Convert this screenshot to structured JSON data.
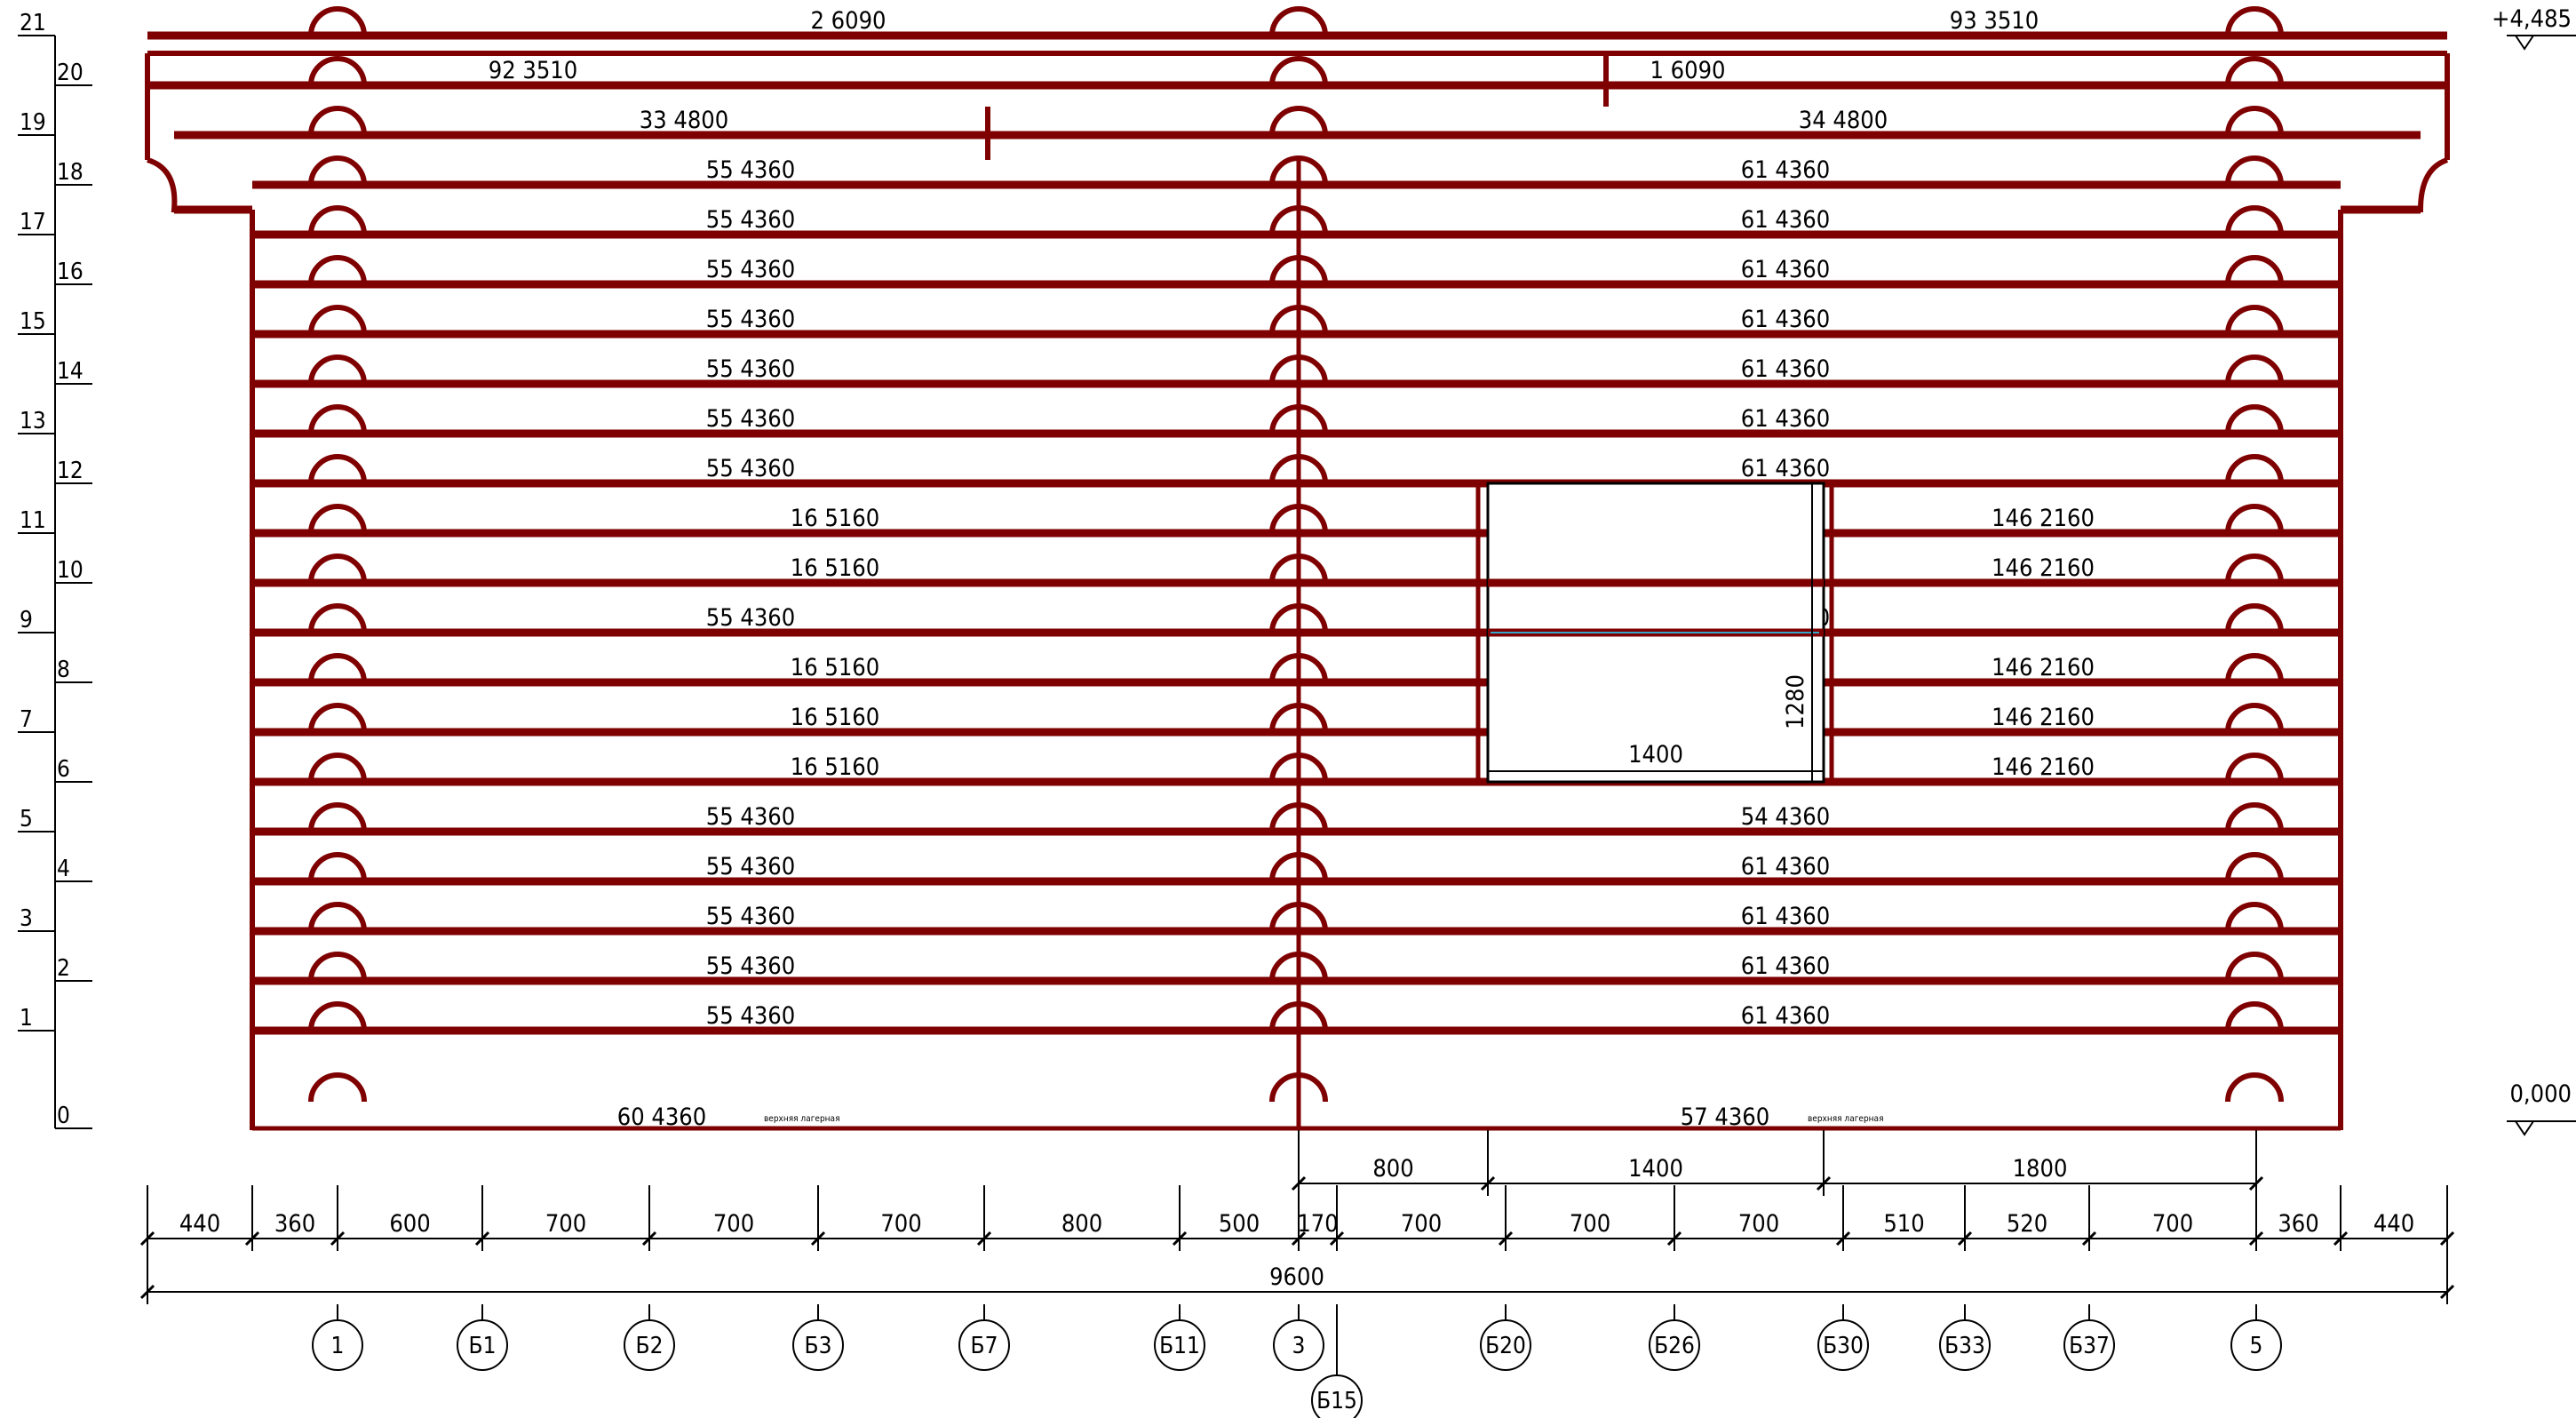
{
  "elevations": {
    "top": "+4,485",
    "bottom": "0,000"
  },
  "row_numbers": [
    "0",
    "1",
    "2",
    "3",
    "4",
    "5",
    "6",
    "7",
    "8",
    "9",
    "10",
    "11",
    "12",
    "13",
    "14",
    "15",
    "16",
    "17",
    "18",
    "19",
    "20",
    "21"
  ],
  "rows": {
    "21": {
      "left": "2  6090",
      "right": "93  3510"
    },
    "20": {
      "left": "92  3510",
      "right": "1  6090"
    },
    "19": {
      "left": "33  4800",
      "right": "34  4800"
    },
    "18": {
      "left": "55  4360",
      "right": "61  4360"
    },
    "17": {
      "left": "55  4360",
      "right": "61  4360"
    },
    "16": {
      "left": "55  4360",
      "right": "61  4360"
    },
    "15": {
      "left": "55  4360",
      "right": "61  4360"
    },
    "14": {
      "left": "55  4360",
      "right": "61  4360"
    },
    "13": {
      "left": "55  4360",
      "right": "61  4360"
    },
    "12": {
      "left": "55  4360",
      "right": "61  4360"
    },
    "11": {
      "left": "16  5160",
      "right": "146  2160"
    },
    "10": {
      "left": "16  5160",
      "right": "146  2160"
    },
    "9": {
      "left": "55  4360",
      "right": "61  4360"
    },
    "8": {
      "left": "16  5160",
      "right": "146  2160"
    },
    "7": {
      "left": "16  5160",
      "right": "146  2160"
    },
    "6": {
      "left": "16  5160",
      "right": "146  2160"
    },
    "5": {
      "left": "55  4360",
      "right": "54  4360"
    },
    "4": {
      "left": "55  4360",
      "right": "61  4360"
    },
    "3": {
      "left": "55  4360",
      "right": "61  4360"
    },
    "2": {
      "left": "55  4360",
      "right": "61  4360"
    },
    "1": {
      "left": "55  4360",
      "right": "61  4360"
    },
    "0": {
      "left": "60  4360",
      "right": "57  4360",
      "note": "верхняя лагерная"
    }
  },
  "opening": {
    "width": "1400",
    "height": "1280"
  },
  "dims_top": [
    "800",
    "1400",
    "1800"
  ],
  "dims_main": [
    "440",
    "360",
    "600",
    "700",
    "700",
    "700",
    "800",
    "500",
    "170",
    "700",
    "700",
    "700",
    "510",
    "520",
    "700",
    "360",
    "440"
  ],
  "dims_total": "9600",
  "axes": [
    "1",
    "Б1",
    "Б2",
    "Б3",
    "Б7",
    "Б11",
    "3",
    "Б15",
    "Б20",
    "Б26",
    "Б30",
    "Б33",
    "Б37",
    "5"
  ],
  "colors": {
    "log": "#7f0000",
    "line": "#000000",
    "opening_accent": "#33aacc"
  }
}
